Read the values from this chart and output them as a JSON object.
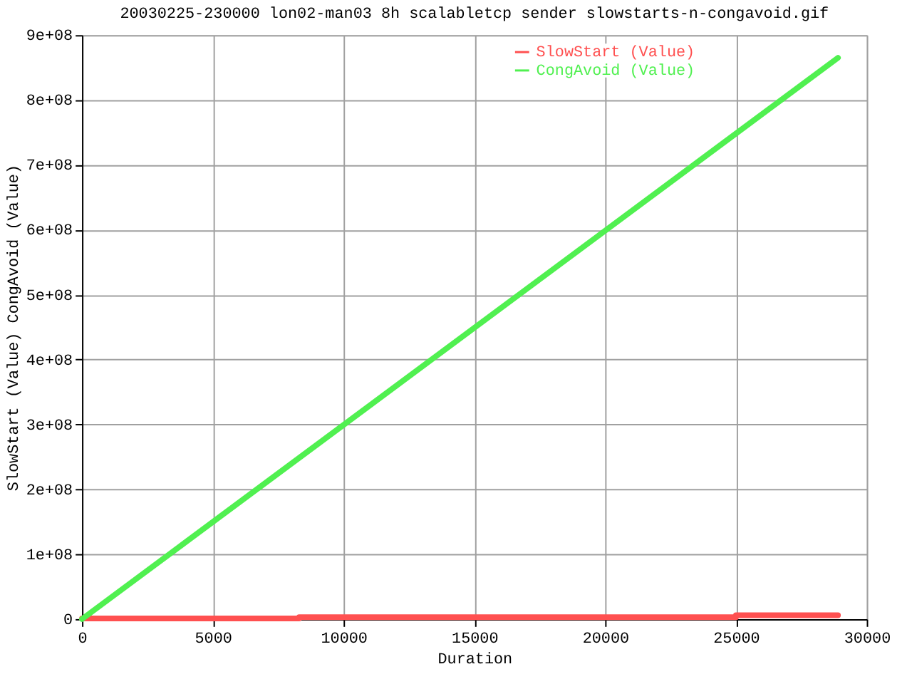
{
  "chart_data": {
    "type": "line",
    "title": "20030225-230000 lon02-man03 8h scalabletcp sender slowstarts-n-congavoid.gif",
    "xlabel": "Duration",
    "ylabel": "SlowStart (Value) CongAvoid (Value)",
    "series": [
      {
        "name": "SlowStart (Value)",
        "type": "step",
        "color": "#ff5050",
        "x": [
          0,
          8300,
          25000,
          28900
        ],
        "values": [
          1000000,
          3000000,
          6000000,
          6000000
        ]
      },
      {
        "name": "CongAvoid (Value)",
        "color": "#50f050",
        "x": [
          0,
          28900
        ],
        "values": [
          0,
          865000000
        ]
      }
    ],
    "xlim": [
      0,
      30000
    ],
    "xticks": [
      0,
      5000,
      10000,
      15000,
      20000,
      25000,
      30000
    ],
    "ylim": [
      0,
      900000000
    ],
    "yticks": [
      0,
      {
        "value": 100000000,
        "label": "1e+08"
      },
      {
        "value": 200000000,
        "label": "2e+08"
      },
      {
        "value": 300000000,
        "label": "3e+08"
      },
      {
        "value": 400000000,
        "label": "4e+08"
      },
      {
        "value": 500000000,
        "label": "5e+08"
      },
      {
        "value": 600000000,
        "label": "6e+08"
      },
      {
        "value": 700000000,
        "label": "7e+08"
      },
      {
        "value": 800000000,
        "label": "8e+08"
      },
      {
        "value": 900000000,
        "label": "9e+08"
      }
    ],
    "grid": true,
    "legend": "top right"
  }
}
